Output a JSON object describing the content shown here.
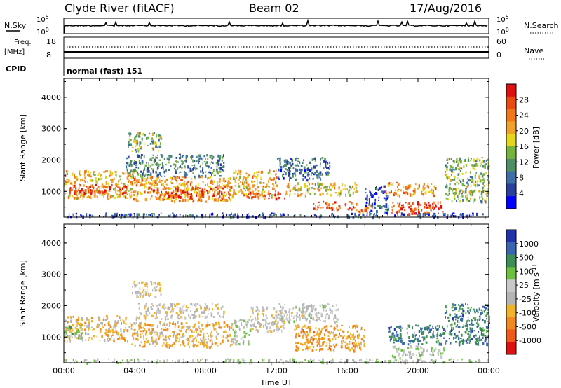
{
  "header": {
    "station": "Clyde River (fitACF)",
    "beam": "Beam 02",
    "date": "17/Aug/2016"
  },
  "strips": {
    "nsky_label": "N.Sky",
    "nsearch_label": "N.Search",
    "nsky_ticks": [
      "10^5",
      "10^0"
    ],
    "freq_label_1": "Freq.",
    "freq_label_2": "[MHz]",
    "nave_label": "Nave",
    "freq_ticks": [
      "18",
      "8"
    ],
    "nave_ticks": [
      "60",
      "0"
    ],
    "cpid_label": "CPID",
    "cpid_value": "normal (fast) 151"
  },
  "colors": {
    "power_scale": [
      "#0000ff",
      "#2b3f9e",
      "#3d6fa8",
      "#4e8f63",
      "#76b33c",
      "#e6d61a",
      "#f0a12a",
      "#f07818",
      "#e84a10",
      "#e01010"
    ],
    "velocity_scale": [
      "#e01010",
      "#f05a18",
      "#f08a20",
      "#f0b32a",
      "#b4b4b4",
      "#c8c8c8",
      "#6cc040",
      "#3d8f55",
      "#3a66b0",
      "#2233aa"
    ]
  },
  "chart_data": [
    {
      "type": "heatmap",
      "name": "power-panel",
      "ylabel": "Slant Range [km]",
      "xlabel": "",
      "xlim": [
        0,
        24
      ],
      "ylim": [
        180,
        4600
      ],
      "yticks": [
        "1000",
        "2000",
        "3000",
        "4000"
      ],
      "xticks": [
        "00:00",
        "04:00",
        "08:00",
        "12:00",
        "16:00",
        "20:00",
        "00:00"
      ],
      "colorbar_label": "Power [dB]",
      "colorbar_ticks": [
        "4",
        "8",
        "12",
        "16",
        "20",
        "24",
        "28"
      ],
      "colorbar_range": [
        0,
        32
      ],
      "regions": [
        {
          "t": [
            0.0,
            4.0
          ],
          "r": [
            800,
            1700
          ],
          "v": 20
        },
        {
          "t": [
            0.3,
            3.5
          ],
          "r": [
            950,
            1250
          ],
          "v": 28
        },
        {
          "t": [
            3.8,
            9.5
          ],
          "r": [
            700,
            1500
          ],
          "v": 22
        },
        {
          "t": [
            5.0,
            9.0
          ],
          "r": [
            850,
            1150
          ],
          "v": 28
        },
        {
          "t": [
            3.5,
            9.0
          ],
          "r": [
            1500,
            2200
          ],
          "v": 10
        },
        {
          "t": [
            3.6,
            5.5
          ],
          "r": [
            2300,
            2900
          ],
          "v": 14
        },
        {
          "t": [
            9.5,
            12.0
          ],
          "r": [
            900,
            1700
          ],
          "v": 20
        },
        {
          "t": [
            10.0,
            12.5
          ],
          "r": [
            800,
            1000
          ],
          "v": 27
        },
        {
          "t": [
            12.0,
            15.0
          ],
          "r": [
            1400,
            2100
          ],
          "v": 8
        },
        {
          "t": [
            12.5,
            16.5
          ],
          "r": [
            900,
            1300
          ],
          "v": 18
        },
        {
          "t": [
            14.0,
            16.5
          ],
          "r": [
            450,
            700
          ],
          "v": 26
        },
        {
          "t": [
            16.5,
            17.5
          ],
          "r": [
            350,
            600
          ],
          "v": 22
        },
        {
          "t": [
            17.0,
            18.3
          ],
          "r": [
            300,
            1200
          ],
          "v": 6
        },
        {
          "t": [
            18.5,
            21.5
          ],
          "r": [
            300,
            700
          ],
          "v": 28
        },
        {
          "t": [
            18.0,
            21.0
          ],
          "r": [
            900,
            1300
          ],
          "v": 22
        },
        {
          "t": [
            21.5,
            24.0
          ],
          "r": [
            700,
            2100
          ],
          "v": 14
        },
        {
          "t": [
            0.0,
            24.0
          ],
          "r": [
            200,
            330
          ],
          "v": 6
        }
      ]
    },
    {
      "type": "heatmap",
      "name": "velocity-panel",
      "ylabel": "Slant Range [km]",
      "xlabel": "Time UT",
      "xlim": [
        0,
        24
      ],
      "ylim": [
        180,
        4600
      ],
      "yticks": [
        "1000",
        "2000",
        "3000",
        "4000"
      ],
      "xticks": [
        "00:00",
        "04:00",
        "08:00",
        "12:00",
        "16:00",
        "20:00",
        "00:00"
      ],
      "colorbar_label": "Velocity [m s^-1]",
      "colorbar_ticks": [
        "1000",
        "500",
        "100",
        "25",
        "-25",
        "-100",
        "-500",
        "-1000"
      ],
      "colorbar_range": [
        -1000,
        1000
      ],
      "regions": [
        {
          "t": [
            0.0,
            3.5
          ],
          "r": [
            900,
            1700
          ],
          "v": -300
        },
        {
          "t": [
            0.0,
            1.0
          ],
          "r": [
            1000,
            1400
          ],
          "v": 300
        },
        {
          "t": [
            3.5,
            9.5
          ],
          "r": [
            700,
            1500
          ],
          "v": -300
        },
        {
          "t": [
            4.0,
            9.0
          ],
          "r": [
            1600,
            2100
          ],
          "v": -100
        },
        {
          "t": [
            3.8,
            5.5
          ],
          "r": [
            2300,
            2800
          ],
          "v": -150
        },
        {
          "t": [
            9.5,
            10.5
          ],
          "r": [
            800,
            1600
          ],
          "v": 80
        },
        {
          "t": [
            10.5,
            12.5
          ],
          "r": [
            1200,
            2000
          ],
          "v": -60
        },
        {
          "t": [
            12.0,
            15.5
          ],
          "r": [
            1500,
            2100
          ],
          "v": 10
        },
        {
          "t": [
            13.0,
            17.0
          ],
          "r": [
            600,
            1400
          ],
          "v": -400
        },
        {
          "t": [
            18.3,
            21.5
          ],
          "r": [
            800,
            1400
          ],
          "v": 600
        },
        {
          "t": [
            18.5,
            21.5
          ],
          "r": [
            350,
            750
          ],
          "v": 150
        },
        {
          "t": [
            21.5,
            24.0
          ],
          "r": [
            800,
            2100
          ],
          "v": 600
        },
        {
          "t": [
            0.0,
            24.0
          ],
          "r": [
            200,
            330
          ],
          "v": 120
        }
      ]
    }
  ]
}
